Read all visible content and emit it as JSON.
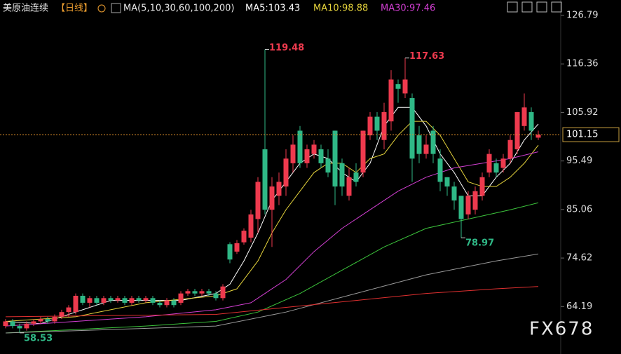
{
  "chart_data": {
    "type": "candlestick",
    "title": "美原油连续",
    "period": "【日线】",
    "indicator": "MA(5,10,30,60,100,200)",
    "watermark": "FX678",
    "up_color": "#ee3a4e",
    "down_color": "#2fb886",
    "ylim": [
      57,
      130.1
    ],
    "yticks": [
      126.79,
      116.36,
      105.92,
      95.49,
      85.06,
      74.62,
      64.19
    ],
    "grid": false,
    "ohlc": [
      [
        60,
        61.5,
        59.5,
        61
      ],
      [
        61,
        61.5,
        59.5,
        60
      ],
      [
        60,
        60.5,
        58.53,
        59.5
      ],
      [
        59.5,
        61,
        59,
        60.5
      ],
      [
        60.5,
        61.5,
        60,
        61
      ],
      [
        61,
        62,
        60.5,
        61.5
      ],
      [
        61.5,
        62,
        60.5,
        61
      ],
      [
        61,
        62.5,
        60.5,
        62
      ],
      [
        62,
        63.5,
        61.5,
        63
      ],
      [
        63,
        64.5,
        62,
        64
      ],
      [
        63,
        67,
        62.5,
        66.5
      ],
      [
        66.5,
        67,
        64.5,
        65
      ],
      [
        65,
        66.5,
        64,
        66
      ],
      [
        66,
        66.5,
        64.5,
        65
      ],
      [
        65,
        66.5,
        64.5,
        66
      ],
      [
        66,
        66.5,
        65,
        65.5
      ],
      [
        65.5,
        66.5,
        65,
        66
      ],
      [
        66,
        66.5,
        64.5,
        65
      ],
      [
        65,
        66.5,
        64.5,
        66
      ],
      [
        66,
        66.5,
        65,
        65.5
      ],
      [
        65.5,
        66.5,
        65,
        66
      ],
      [
        66,
        66.5,
        64.5,
        65
      ],
      [
        65,
        65.5,
        64,
        64.5
      ],
      [
        64.5,
        66,
        64,
        65.5
      ],
      [
        65.5,
        66,
        64,
        64.5
      ],
      [
        65,
        67.5,
        64.5,
        67
      ],
      [
        67,
        68,
        66.5,
        67.5
      ],
      [
        67.5,
        68,
        66.5,
        67
      ],
      [
        67,
        68,
        66.5,
        67.5
      ],
      [
        67.5,
        68,
        66.5,
        67
      ],
      [
        67,
        67.5,
        65.5,
        66
      ],
      [
        66,
        69,
        65.5,
        68.5
      ],
      [
        77.6,
        78,
        73.5,
        74.3
      ],
      [
        76,
        78.5,
        75.5,
        77.8
      ],
      [
        78,
        81,
        77.5,
        80.5
      ],
      [
        79,
        85,
        78,
        84
      ],
      [
        83,
        92,
        80,
        91
      ],
      [
        98,
        119.48,
        84,
        85
      ],
      [
        85,
        92,
        77,
        90
      ],
      [
        88,
        93,
        86,
        91
      ],
      [
        90,
        98,
        88,
        96
      ],
      [
        95,
        101,
        93,
        99
      ],
      [
        102,
        103,
        94,
        95
      ],
      [
        95,
        99,
        94,
        98
      ],
      [
        97,
        100,
        96,
        99
      ],
      [
        98,
        99,
        94,
        95
      ],
      [
        96,
        98,
        92,
        93
      ],
      [
        102,
        102,
        86,
        90
      ],
      [
        95,
        96,
        88,
        90
      ],
      [
        88,
        94,
        87,
        92
      ],
      [
        93,
        95,
        90,
        91
      ],
      [
        93,
        102,
        92,
        102
      ],
      [
        101,
        106,
        100,
        105
      ],
      [
        105,
        106,
        100,
        102
      ],
      [
        100,
        108,
        98,
        106
      ],
      [
        104,
        115,
        102,
        113
      ],
      [
        112,
        113,
        108,
        111
      ],
      [
        110,
        117.63,
        109,
        113
      ],
      [
        109,
        110,
        91,
        96
      ],
      [
        101,
        103,
        95,
        97
      ],
      [
        97,
        101,
        96,
        99
      ],
      [
        102,
        103,
        95,
        97
      ],
      [
        96,
        98,
        89,
        91
      ],
      [
        92,
        92,
        88,
        90
      ],
      [
        90,
        91,
        85,
        87
      ],
      [
        88,
        88,
        78.97,
        83
      ],
      [
        84,
        89,
        83,
        88
      ],
      [
        85,
        90,
        84,
        89
      ],
      [
        88,
        93,
        87,
        92
      ],
      [
        93,
        98,
        92,
        97
      ],
      [
        95,
        96,
        92,
        93
      ],
      [
        94,
        97,
        93,
        96
      ],
      [
        96,
        101,
        95,
        100
      ],
      [
        98,
        106,
        97,
        106
      ],
      [
        103,
        110,
        102,
        107
      ],
      [
        106,
        107,
        100,
        102
      ],
      [
        100.5,
        102,
        100,
        101.15
      ]
    ],
    "series": [
      {
        "name": "MA5:103.43",
        "color": "#ffffff",
        "x": [
          0,
          5,
          10,
          15,
          20,
          25,
          30,
          32,
          34,
          36,
          38,
          40,
          42,
          44,
          46,
          48,
          50,
          52,
          54,
          56,
          58,
          60,
          62,
          64,
          66,
          68,
          70,
          72,
          74,
          76
        ],
        "values": [
          61,
          60.5,
          63,
          65.5,
          65.5,
          65.5,
          67,
          69,
          74,
          80,
          87,
          91,
          95,
          97,
          96,
          93,
          91,
          95,
          103,
          107,
          107,
          103,
          97,
          93,
          88,
          88,
          92,
          95,
          100,
          103.43
        ]
      },
      {
        "name": "MA10:98.88",
        "color": "#e6d43c",
        "x": [
          0,
          10,
          20,
          30,
          33,
          36,
          38,
          40,
          42,
          44,
          46,
          48,
          50,
          52,
          54,
          56,
          58,
          60,
          62,
          64,
          66,
          68,
          70,
          72,
          74,
          76
        ],
        "values": [
          61,
          62,
          65,
          66.5,
          68,
          74,
          80,
          85,
          89,
          93,
          95,
          95,
          93,
          96,
          97,
          101,
          104,
          104,
          101,
          96,
          91,
          90,
          90,
          92,
          95,
          98.88
        ]
      },
      {
        "name": "MA30:97.46",
        "color": "#d23fd2",
        "x": [
          0,
          10,
          20,
          30,
          35,
          40,
          44,
          48,
          52,
          56,
          60,
          64,
          68,
          72,
          76
        ],
        "values": [
          60,
          61,
          62,
          63.5,
          65,
          70,
          76,
          81,
          85,
          89,
          92,
          94,
          95,
          96,
          97.46
        ]
      },
      {
        "color": "#3cc43c",
        "x": [
          0,
          20,
          30,
          36,
          42,
          48,
          54,
          60,
          66,
          72,
          76
        ],
        "values": [
          58.5,
          60,
          61,
          63,
          67,
          72,
          77,
          81,
          83,
          85,
          86.5
        ]
      },
      {
        "color": "#9a9a9a",
        "x": [
          0,
          30,
          40,
          50,
          60,
          70,
          76
        ],
        "values": [
          58.5,
          60,
          63,
          67,
          71,
          74,
          75.5
        ]
      },
      {
        "color": "#e03030",
        "x": [
          0,
          30,
          40,
          50,
          60,
          70,
          76
        ],
        "values": [
          62,
          62.5,
          64,
          65.5,
          67,
          68,
          68.5
        ]
      }
    ]
  }
}
